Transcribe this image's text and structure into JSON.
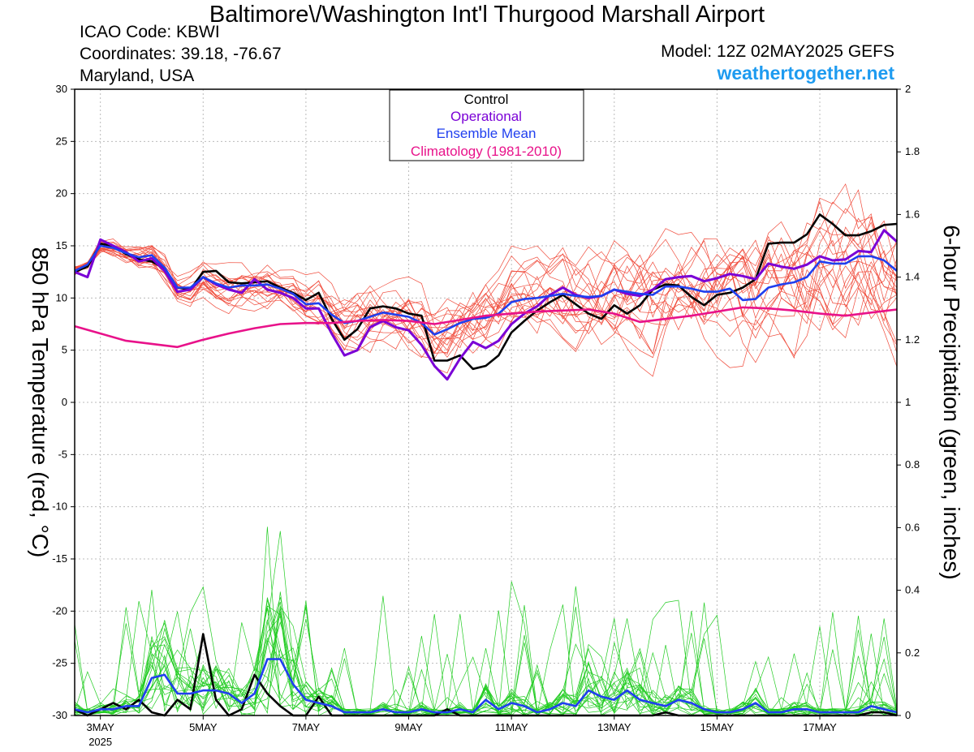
{
  "header": {
    "title": "Baltimore\\/Washington Int'l Thurgood Marshall Airport",
    "icao": "ICAO Code: KBWI",
    "coords": "Coordinates: 39.18, -76.67",
    "region": "Maryland, USA",
    "model": "Model: 12Z 02MAY2025 GEFS",
    "site": "weathertogether.net"
  },
  "colors": {
    "control": "#000000",
    "operational": "#7a00d6",
    "mean": "#1f3fef",
    "climatology": "#e8128a",
    "members_temp": "#f04a3a",
    "members_precip": "#22cc22"
  },
  "chart_data": {
    "type": "line",
    "xlabel": "",
    "ylabel": "850 hPa Temperature (red, °C)",
    "y2label": "6-hour Precipitation (green, inches)",
    "ylim": [
      -30,
      30
    ],
    "y2lim": [
      0,
      2
    ],
    "yticks": [
      "30",
      "25",
      "20",
      "15",
      "10",
      "5",
      "0",
      "-5",
      "-10",
      "-15",
      "-20",
      "-25",
      "-30"
    ],
    "y2ticks": [
      "2",
      "1.8",
      "1.6",
      "1.4",
      "1.2",
      "1",
      "0.8",
      "0.6",
      "0.4",
      "0.2",
      "0"
    ],
    "xrange_days": [
      2.5,
      18.5
    ],
    "xticks": [
      {
        "day": 3,
        "label": "3MAY",
        "sub": "2025"
      },
      {
        "day": 5,
        "label": "5MAY",
        "sub": ""
      },
      {
        "day": 7,
        "label": "7MAY",
        "sub": ""
      },
      {
        "day": 9,
        "label": "9MAY",
        "sub": ""
      },
      {
        "day": 11,
        "label": "11MAY",
        "sub": ""
      },
      {
        "day": 13,
        "label": "13MAY",
        "sub": ""
      },
      {
        "day": 15,
        "label": "15MAY",
        "sub": ""
      },
      {
        "day": 17,
        "label": "17MAY",
        "sub": ""
      }
    ],
    "legend": {
      "placement": "top-center",
      "entries": [
        "Control",
        "Operational",
        "Ensemble Mean",
        "Climatology (1981-2010)"
      ]
    },
    "grid": true,
    "series": [
      {
        "name": "Control",
        "axis": "temp",
        "x": [
          2.5,
          2.75,
          3.0,
          3.25,
          3.5,
          3.75,
          4.0,
          4.25,
          4.5,
          4.75,
          5.0,
          5.25,
          5.5,
          5.75,
          6.0,
          6.25,
          6.5,
          6.75,
          7.0,
          7.25,
          7.5,
          7.75,
          8.0,
          8.25,
          8.5,
          8.75,
          9.0,
          9.25,
          9.5,
          9.75,
          10.0,
          10.25,
          10.5,
          10.75,
          11.0,
          11.25,
          11.5,
          11.75,
          12.0,
          12.25,
          12.5,
          12.75,
          13.0,
          13.25,
          13.5,
          13.75,
          14.0,
          14.25,
          14.5,
          14.75,
          15.0,
          15.25,
          15.5,
          15.75,
          16.0,
          16.25,
          16.5,
          16.75,
          17.0,
          17.25,
          17.5,
          17.75,
          18.0,
          18.25,
          18.5
        ],
        "y": [
          12.5,
          13,
          15.2,
          15,
          14.2,
          13.7,
          13.5,
          12.8,
          11,
          10.8,
          12.5,
          12.6,
          11.5,
          11.4,
          11.5,
          11.6,
          11,
          10.5,
          9.8,
          10.5,
          8,
          6,
          7,
          9,
          9.2,
          9,
          8.5,
          8.3,
          4,
          4,
          4.5,
          3.2,
          3.5,
          4.5,
          6.7,
          7.8,
          8.8,
          9.6,
          10.3,
          9.4,
          8.5,
          8,
          9.3,
          8.5,
          9.3,
          10.8,
          11.3,
          11.2,
          10.1,
          9.3,
          10.3,
          10.5,
          11,
          11.8,
          15.2,
          15.3,
          15.3,
          16.1,
          18,
          17.1,
          16,
          16,
          16.4,
          17,
          17.1
        ]
      },
      {
        "name": "Operational",
        "axis": "temp",
        "x": [
          2.5,
          2.75,
          3.0,
          3.25,
          3.5,
          3.75,
          4.0,
          4.25,
          4.5,
          4.75,
          5.0,
          5.25,
          5.5,
          5.75,
          6.0,
          6.25,
          6.5,
          6.75,
          7.0,
          7.25,
          7.5,
          7.75,
          8.0,
          8.25,
          8.5,
          8.75,
          9.0,
          9.25,
          9.5,
          9.75,
          10.0,
          10.25,
          10.5,
          10.75,
          11.0,
          11.25,
          11.5,
          11.75,
          12.0,
          12.25,
          12.5,
          12.75,
          13.0,
          13.25,
          13.5,
          13.75,
          14.0,
          14.25,
          14.5,
          14.75,
          15.0,
          15.25,
          15.5,
          15.75,
          16.0,
          16.25,
          16.5,
          16.75,
          17.0,
          17.25,
          17.5,
          17.75,
          18.0,
          18.25,
          18.5
        ],
        "y": [
          12.5,
          12,
          15.6,
          15,
          14.4,
          13.5,
          13.8,
          12.6,
          10.6,
          10.8,
          12,
          11.3,
          10.8,
          10.5,
          11.8,
          10.8,
          10.5,
          10,
          9,
          9,
          6.6,
          4.5,
          5,
          7.2,
          7.8,
          7.2,
          6.9,
          5.5,
          3.5,
          2.2,
          4.2,
          5.8,
          5.2,
          5.9,
          7.5,
          8.5,
          9.2,
          10.3,
          11,
          10.3,
          10,
          10.2,
          10.8,
          10.4,
          10.2,
          10.8,
          11.8,
          12,
          12.1,
          11.6,
          11.9,
          12.3,
          12.1,
          11.8,
          13.3,
          13,
          12.8,
          13.2,
          14,
          13.6,
          13.7,
          14.5,
          14.4,
          16.5,
          15.4
        ]
      },
      {
        "name": "Ensemble Mean",
        "axis": "temp",
        "x": [
          2.5,
          2.75,
          3.0,
          3.25,
          3.5,
          3.75,
          4.0,
          4.25,
          4.5,
          4.75,
          5.0,
          5.25,
          5.5,
          5.75,
          6.0,
          6.25,
          6.5,
          6.75,
          7.0,
          7.25,
          7.5,
          7.75,
          8.0,
          8.25,
          8.5,
          8.75,
          9.0,
          9.25,
          9.5,
          9.75,
          10.0,
          10.25,
          10.5,
          10.75,
          11.0,
          11.25,
          11.5,
          11.75,
          12.0,
          12.25,
          12.5,
          12.75,
          13.0,
          13.25,
          13.5,
          13.75,
          14.0,
          14.25,
          14.5,
          14.75,
          15.0,
          15.25,
          15.5,
          15.75,
          16.0,
          16.25,
          16.5,
          16.75,
          17.0,
          17.25,
          17.5,
          17.75,
          18.0,
          18.25,
          18.5
        ],
        "y": [
          12.6,
          13.2,
          15,
          14.8,
          14.3,
          13.9,
          14.1,
          12.9,
          11,
          11,
          12,
          11.4,
          11,
          11.2,
          11.2,
          11.3,
          10.9,
          10.4,
          9.4,
          9.5,
          8.4,
          7.6,
          7.8,
          8.2,
          8.6,
          8.4,
          8.2,
          7.6,
          6.5,
          7,
          7.6,
          8,
          8.1,
          8.5,
          9.6,
          9.9,
          10,
          10.2,
          10.4,
          10.2,
          10.1,
          10.2,
          10.8,
          10.6,
          10.4,
          10.3,
          11.1,
          11.1,
          10.9,
          10.6,
          10.6,
          10.9,
          9.8,
          9.9,
          11,
          11.3,
          11.5,
          12,
          13.5,
          13.3,
          13.3,
          14,
          14,
          13.6,
          12.6
        ]
      },
      {
        "name": "Climatology (1981-2010)",
        "axis": "temp",
        "x": [
          2.5,
          3.0,
          3.5,
          4.0,
          4.5,
          5.0,
          5.5,
          6.0,
          6.5,
          7.0,
          7.5,
          8.0,
          8.5,
          9.0,
          9.5,
          10.0,
          10.5,
          11.0,
          11.5,
          12.0,
          12.5,
          13.0,
          13.5,
          14.0,
          14.5,
          15.0,
          15.5,
          16.0,
          16.5,
          17.0,
          17.5,
          18.0,
          18.5
        ],
        "y": [
          7.3,
          6.6,
          5.9,
          5.6,
          5.3,
          6,
          6.6,
          7.1,
          7.5,
          7.6,
          7.6,
          7.8,
          7.9,
          7.8,
          7.5,
          7.9,
          8.3,
          8.5,
          8.7,
          8.8,
          8.9,
          8.5,
          7.7,
          8,
          8.3,
          8.7,
          9.1,
          9,
          8.8,
          8.5,
          8.3,
          8.6,
          8.9
        ]
      },
      {
        "name": "Control",
        "axis": "precip",
        "x": [
          2.5,
          2.75,
          3.0,
          3.25,
          3.5,
          3.75,
          4.0,
          4.25,
          4.5,
          4.75,
          5.0,
          5.25,
          5.5,
          5.75,
          6.0,
          6.25,
          6.5,
          6.75,
          7.0,
          7.25,
          7.5,
          7.75,
          8.0,
          8.25,
          8.5,
          8.75,
          9.0,
          9.25,
          9.5,
          9.75,
          10.0,
          10.25,
          10.5,
          10.75,
          11.0,
          11.25,
          11.5,
          11.75,
          12.0,
          12.25,
          12.5,
          12.75,
          13.0,
          13.25,
          13.5,
          13.75,
          14.0,
          14.25,
          14.5,
          14.75,
          15.0,
          15.25,
          15.5,
          15.75,
          16.0,
          16.25,
          16.5,
          16.75,
          17.0,
          17.25,
          17.5,
          17.75,
          18.0,
          18.25,
          18.5
        ],
        "y": [
          0.02,
          0,
          0.02,
          0.04,
          0.02,
          0.05,
          0.01,
          0,
          0.05,
          0.02,
          0.26,
          0.05,
          0,
          0.02,
          0.13,
          0.07,
          0.03,
          0,
          0,
          0.06,
          0,
          0,
          0,
          0,
          0,
          0,
          0,
          0,
          0,
          0.02,
          0,
          0,
          0,
          0,
          0,
          0,
          0,
          0,
          0,
          0,
          0,
          0,
          0,
          0,
          0,
          0,
          0.01,
          0,
          0,
          0,
          0,
          0,
          0,
          0,
          0,
          0,
          0,
          0,
          0,
          0,
          0,
          0,
          0.01,
          0.01,
          0
        ]
      },
      {
        "name": "Ensemble Mean",
        "axis": "precip",
        "x": [
          2.5,
          2.75,
          3.0,
          3.25,
          3.5,
          3.75,
          4.0,
          4.25,
          4.5,
          4.75,
          5.0,
          5.25,
          5.5,
          5.75,
          6.0,
          6.25,
          6.5,
          6.75,
          7.0,
          7.25,
          7.5,
          7.75,
          8.0,
          8.25,
          8.5,
          8.75,
          9.0,
          9.25,
          9.5,
          9.75,
          10.0,
          10.25,
          10.5,
          10.75,
          11.0,
          11.25,
          11.5,
          11.75,
          12.0,
          12.25,
          12.5,
          12.75,
          13.0,
          13.25,
          13.5,
          13.75,
          14.0,
          14.25,
          14.5,
          14.75,
          15.0,
          15.25,
          15.5,
          15.75,
          16.0,
          16.25,
          16.5,
          16.75,
          17.0,
          17.25,
          17.5,
          17.75,
          18.0,
          18.25,
          18.5
        ],
        "y": [
          0.02,
          0.01,
          0.02,
          0.02,
          0.03,
          0.03,
          0.12,
          0.13,
          0.07,
          0.07,
          0.08,
          0.08,
          0.07,
          0.04,
          0.07,
          0.18,
          0.18,
          0.1,
          0.05,
          0.04,
          0.03,
          0.01,
          0.01,
          0.01,
          0.02,
          0.01,
          0.01,
          0.02,
          0.01,
          0.01,
          0.02,
          0.01,
          0.05,
          0.02,
          0.04,
          0.03,
          0.01,
          0.02,
          0.04,
          0.03,
          0.08,
          0.06,
          0.05,
          0.08,
          0.05,
          0.04,
          0.03,
          0.05,
          0.04,
          0.02,
          0.01,
          0.01,
          0.02,
          0.04,
          0.01,
          0.01,
          0.02,
          0.02,
          0.01,
          0.01,
          0.01,
          0.01,
          0.03,
          0.02,
          0.01
        ]
      }
    ]
  }
}
